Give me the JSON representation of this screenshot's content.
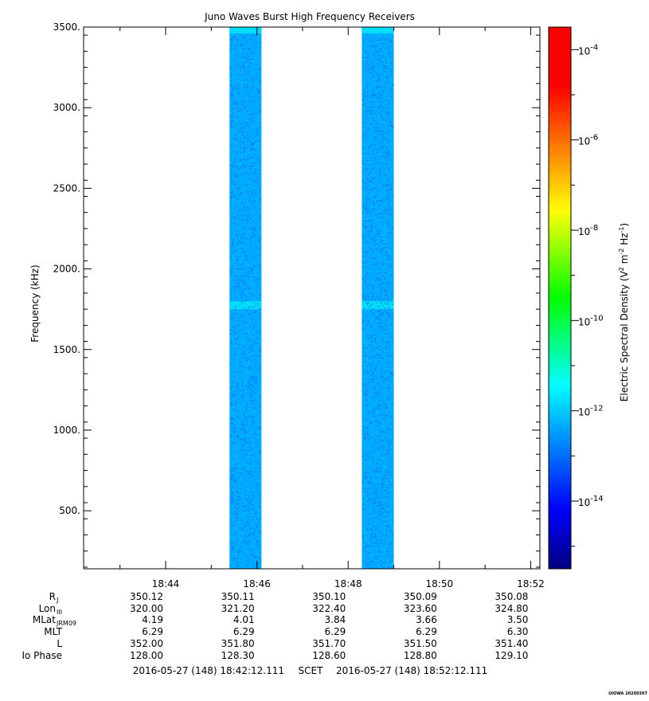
{
  "chart_data": {
    "type": "heatmap",
    "title": "Juno Waves Burst High Frequency Receivers",
    "ylabel": "Frequency (kHz)",
    "ylim": [
      140,
      3500
    ],
    "y_ticks": [
      "3500.",
      "3000.",
      "2500.",
      "2000.",
      "1500.",
      "1000.",
      "500."
    ],
    "y_tick_values": [
      3500,
      3000,
      2500,
      2000,
      1500,
      1000,
      500
    ],
    "x_range_minutes": [
      42.2019,
      52.2019
    ],
    "x_ticks": [
      "18:44",
      "18:46",
      "18:48",
      "18:50",
      "18:52"
    ],
    "x_tick_minutes": [
      44,
      46,
      48,
      50,
      52
    ],
    "data_blocks": [
      {
        "start_minute": 45.4,
        "end_minute": 46.1,
        "level_log10": -12.0,
        "top_level_log10": -11.4
      },
      {
        "start_minute": 48.3,
        "end_minute": 49.0,
        "level_log10": -12.0,
        "top_level_log10": -11.4
      }
    ],
    "bright_band_khz": [
      1750,
      1800
    ],
    "colorbar": {
      "label_main": "Electric Spectral Density (V",
      "label_sup1": "2",
      "label_mid": " m",
      "label_sup2": "-2",
      "label_end1": " Hz",
      "label_sup3": "-1",
      "label_end2": ")",
      "range_log10": [
        -15.5,
        -3.5
      ],
      "tick_base": "10",
      "tick_exponents": [
        "-4",
        "-6",
        "-8",
        "-10",
        "-12",
        "-14"
      ],
      "tick_values_log10": [
        -4,
        -6,
        -8,
        -10,
        -12,
        -14
      ]
    },
    "ephemeris": {
      "labels": [
        {
          "main": "R",
          "sub": "J"
        },
        {
          "main": "Lon",
          "sub": "III"
        },
        {
          "main": "MLat",
          "sub": "JRM09"
        },
        {
          "main": "MLT",
          "sub": ""
        },
        {
          "main": "L",
          "sub": ""
        },
        {
          "main": "Io Phase",
          "sub": ""
        }
      ],
      "rows": [
        [
          "350.12",
          "350.11",
          "350.10",
          "350.09",
          "350.08"
        ],
        [
          "320.00",
          "321.20",
          "322.40",
          "323.60",
          "324.80"
        ],
        [
          "4.19",
          "4.01",
          "3.84",
          "3.66",
          "3.50"
        ],
        [
          "6.29",
          "6.29",
          "6.29",
          "6.29",
          "6.30"
        ],
        [
          "352.00",
          "351.80",
          "351.70",
          "351.50",
          "351.40"
        ],
        [
          "128.00",
          "128.30",
          "128.60",
          "128.80",
          "129.10"
        ]
      ]
    },
    "time_range": {
      "start": "2016-05-27 (148) 18:42:12.111",
      "label": "SCET",
      "end": "2016-05-27 (148) 18:52:12.111"
    },
    "stamp": "UIOWA 20200307"
  }
}
